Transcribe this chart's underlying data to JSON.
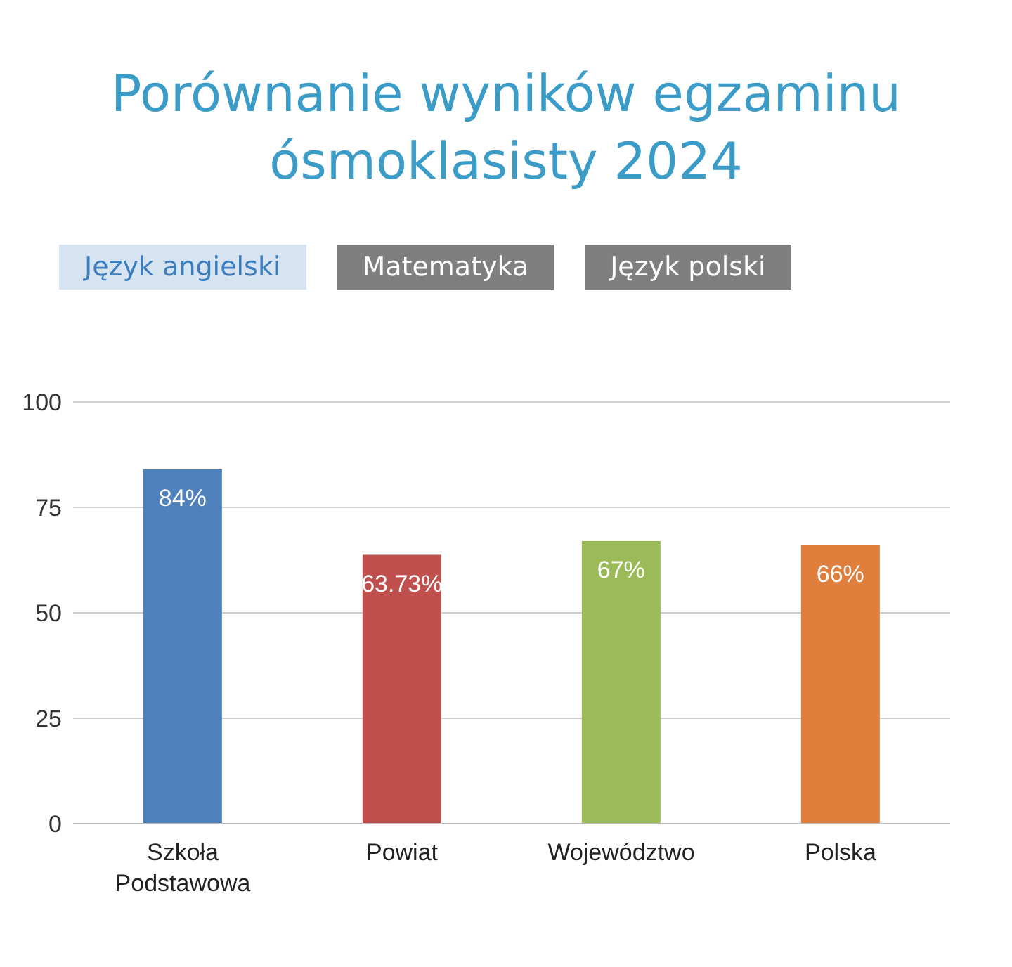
{
  "chart_data": {
    "type": "bar",
    "title": "Porównanie wyników egzaminu ósmoklasisty 2024",
    "annotations": [
      "Język angielski",
      "Matematyka",
      "Język polski"
    ],
    "categories": [
      "Szkoła Podstawowa",
      "Powiat",
      "Województwo",
      "Polska"
    ],
    "values": [
      84,
      63.73,
      67,
      66
    ],
    "colors": [
      "#4f81bd",
      "#c0504d",
      "#9bbb59",
      "#e07f3c"
    ],
    "value_labels": [
      "84%",
      "63.73%",
      "67%",
      "66%"
    ],
    "ylim": [
      0,
      100
    ],
    "yticks": [
      0,
      25,
      50,
      75,
      100
    ],
    "grid": "y",
    "legend": false
  }
}
